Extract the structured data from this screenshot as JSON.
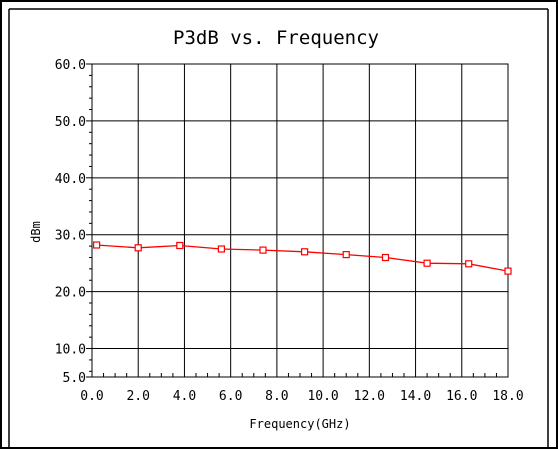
{
  "chart_data": {
    "type": "line",
    "title": "P3dB vs. Frequency",
    "xlabel": "Frequency(GHz)",
    "ylabel": "dBm",
    "xlim": [
      0,
      18
    ],
    "ylim": [
      5,
      60
    ],
    "x_ticks": [
      "0.0",
      "2.0",
      "4.0",
      "6.0",
      "8.0",
      "10.0",
      "12.0",
      "14.0",
      "16.0",
      "18.0"
    ],
    "y_ticks": [
      {
        "value": 5,
        "label": "5.0"
      },
      {
        "value": 10,
        "label": "10.0"
      },
      {
        "value": 20,
        "label": "20.0"
      },
      {
        "value": 30,
        "label": "30.0"
      },
      {
        "value": 40,
        "label": "40.0"
      },
      {
        "value": 50,
        "label": "50.0"
      },
      {
        "value": 60,
        "label": "60.0"
      }
    ],
    "grid": true,
    "series": [
      {
        "color": "#ff0000",
        "marker": "square",
        "x": [
          0.2,
          2.0,
          3.8,
          5.6,
          7.4,
          9.2,
          11.0,
          12.7,
          14.5,
          16.3,
          18.0
        ],
        "y": [
          28.2,
          27.7,
          28.1,
          27.5,
          27.3,
          27.0,
          26.5,
          26.0,
          25.0,
          24.9,
          23.6
        ]
      }
    ]
  }
}
